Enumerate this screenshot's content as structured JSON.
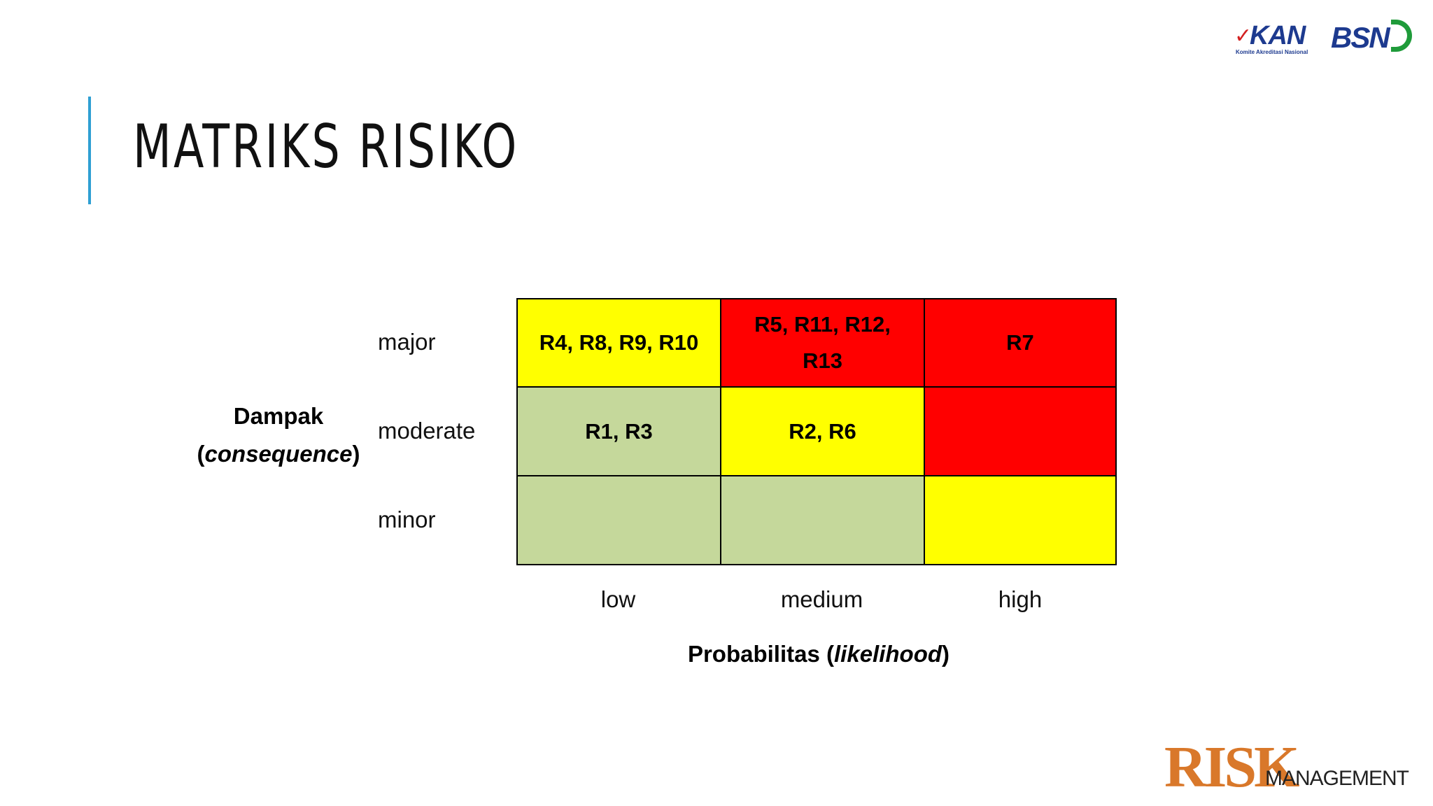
{
  "slide": {
    "title": "MATRIKS RISIKO"
  },
  "logos": {
    "kan": {
      "text": "KAN",
      "subtitle": "Komite Akreditasi Nasional",
      "color": "#1d3a8f",
      "check_color": "#d32020"
    },
    "bsn": {
      "text": "BSN",
      "color": "#1d3a8f",
      "arc_color": "#1f9b3a"
    },
    "risk_management": {
      "main": "RISK",
      "sub": "MANAGEMENT",
      "color": "#d9782a"
    }
  },
  "axes": {
    "y_title": "Dampak",
    "y_title_italic": "consequence",
    "x_title": "Probabilitas",
    "x_title_italic": "likelihood",
    "rows": [
      "major",
      "moderate",
      "minor"
    ],
    "columns": [
      "low",
      "medium",
      "high"
    ]
  },
  "matrix": {
    "colors": {
      "green": "#c5d89b",
      "yellow": "#ffff00",
      "red": "#ff0000"
    },
    "cells": [
      [
        {
          "text": "R4, R8, R9, R10",
          "color": "yellow"
        },
        {
          "text": "R5, R11, R12,\nR13",
          "color": "red"
        },
        {
          "text": "R7",
          "color": "red"
        }
      ],
      [
        {
          "text": "R1, R3",
          "color": "green"
        },
        {
          "text": "R2, R6",
          "color": "yellow"
        },
        {
          "text": "",
          "color": "red"
        }
      ],
      [
        {
          "text": "",
          "color": "green"
        },
        {
          "text": "",
          "color": "green"
        },
        {
          "text": "",
          "color": "yellow"
        }
      ]
    ]
  }
}
